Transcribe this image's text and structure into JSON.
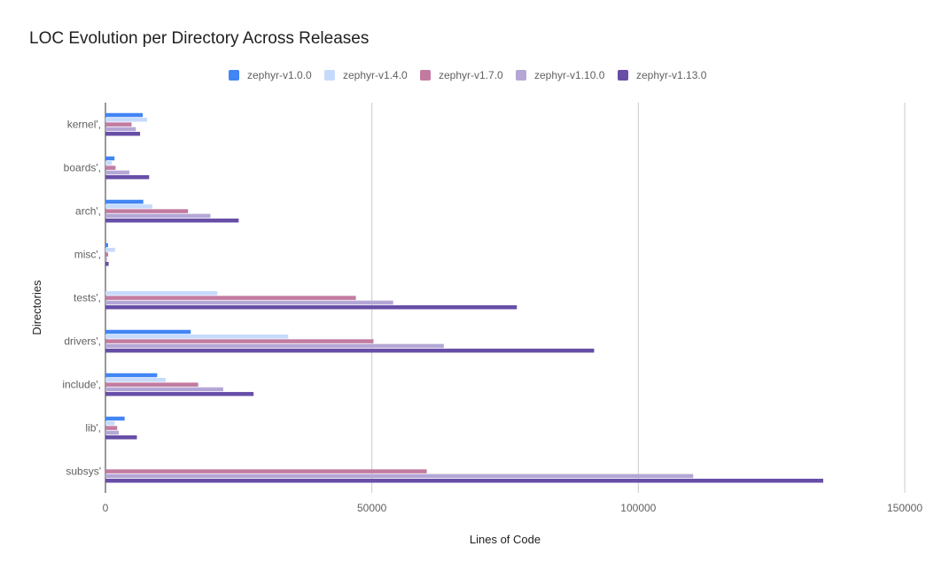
{
  "chart_data": {
    "type": "bar",
    "orientation": "horizontal",
    "title": "LOC Evolution per Directory Across Releases",
    "xlabel": "Lines of Code",
    "ylabel": "Directories",
    "xlim": [
      0,
      150000
    ],
    "xticks": [
      "0",
      "50000",
      "100000",
      "150000"
    ],
    "grid": true,
    "legend_position": "top",
    "categories": [
      "kernel',",
      "boards',",
      "arch',",
      "misc',",
      "tests',",
      "drivers',",
      "include',",
      "lib',",
      "subsys'"
    ],
    "series": [
      {
        "name": "zephyr-v1.0.0",
        "color": "#4285f4",
        "values": [
          7000,
          1700,
          7100,
          500,
          0,
          16000,
          9700,
          3600,
          0
        ]
      },
      {
        "name": "zephyr-v1.4.0",
        "color": "#c6dafc",
        "values": [
          7800,
          1200,
          8800,
          1800,
          21000,
          34300,
          11300,
          1700,
          0
        ]
      },
      {
        "name": "zephyr-v1.7.0",
        "color": "#c27ba0",
        "values": [
          4900,
          1900,
          15500,
          500,
          47000,
          50300,
          17400,
          2200,
          60300
        ]
      },
      {
        "name": "zephyr-v1.10.0",
        "color": "#b4a7d6",
        "values": [
          5700,
          4500,
          19700,
          300,
          54000,
          63500,
          22100,
          2500,
          110300
        ]
      },
      {
        "name": "zephyr-v1.13.0",
        "color": "#674ea7",
        "values": [
          6500,
          8200,
          25000,
          600,
          77200,
          91700,
          27800,
          5900,
          134700
        ]
      }
    ]
  }
}
